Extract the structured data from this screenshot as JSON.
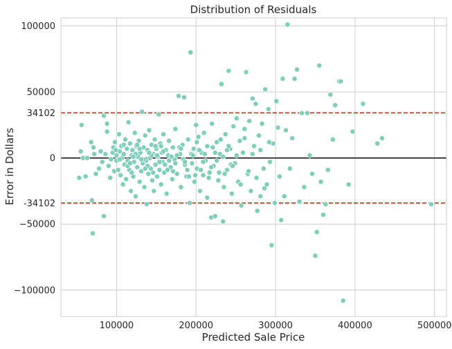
{
  "chart_data": {
    "type": "scatter",
    "title": "Distribution of Residuals",
    "xlabel": "Predicted Sale Price",
    "ylabel": "Error in Dollars",
    "xlim": [
      30000,
      515000
    ],
    "ylim": [
      -120000,
      106000
    ],
    "xticks": [
      100000,
      200000,
      300000,
      400000,
      500000
    ],
    "yticks": [
      100000,
      50000,
      0,
      -50000,
      -100000
    ],
    "ytick_labels": [
      "100000",
      "50000",
      "0",
      "−50000",
      "−100000"
    ],
    "grid": true,
    "point_color": "#7fcdbb",
    "zero_line": {
      "y": 0,
      "color": "#000000"
    },
    "threshold_lines": [
      {
        "y": 34102,
        "label": "34102",
        "color": "#ff0000",
        "style": "dashed"
      },
      {
        "y": -34102,
        "label": "-34102",
        "color": "#ff0000",
        "style": "dashed"
      }
    ],
    "points": [
      [
        53000,
        -15000
      ],
      [
        55000,
        5000
      ],
      [
        56000,
        25000
      ],
      [
        58000,
        0
      ],
      [
        61000,
        -14000
      ],
      [
        63000,
        0
      ],
      [
        68000,
        12000
      ],
      [
        69000,
        -32000
      ],
      [
        70000,
        -57000
      ],
      [
        71000,
        8000
      ],
      [
        72000,
        3000
      ],
      [
        74000,
        -12000
      ],
      [
        78000,
        -8000
      ],
      [
        80000,
        5000
      ],
      [
        82000,
        -3000
      ],
      [
        84000,
        -44000
      ],
      [
        84000,
        32000
      ],
      [
        86000,
        3000
      ],
      [
        88000,
        20000
      ],
      [
        88000,
        26000
      ],
      [
        90000,
        -6000
      ],
      [
        92000,
        -15000
      ],
      [
        93000,
        -1000
      ],
      [
        95000,
        4000
      ],
      [
        96000,
        8000
      ],
      [
        97000,
        -10000
      ],
      [
        98000,
        12000
      ],
      [
        100000,
        -2000
      ],
      [
        100000,
        2000
      ],
      [
        102000,
        -9000
      ],
      [
        103000,
        18000
      ],
      [
        104000,
        5000
      ],
      [
        105000,
        -13000
      ],
      [
        106000,
        9000
      ],
      [
        107000,
        0
      ],
      [
        108000,
        -20000
      ],
      [
        109000,
        3000
      ],
      [
        110000,
        -5000
      ],
      [
        111000,
        14000
      ],
      [
        112000,
        -16000
      ],
      [
        113000,
        7000
      ],
      [
        114000,
        -2000
      ],
      [
        115000,
        27000
      ],
      [
        116000,
        -9000
      ],
      [
        117000,
        11000
      ],
      [
        118000,
        -25000
      ],
      [
        119000,
        2000
      ],
      [
        120000,
        6000
      ],
      [
        121000,
        -14000
      ],
      [
        122000,
        -3000
      ],
      [
        123000,
        19000
      ],
      [
        124000,
        -29000
      ],
      [
        125000,
        9000
      ],
      [
        126000,
        -7000
      ],
      [
        127000,
        1000
      ],
      [
        128000,
        13000
      ],
      [
        129000,
        -18000
      ],
      [
        130000,
        4000
      ],
      [
        131000,
        -10000
      ],
      [
        132000,
        35000
      ],
      [
        133000,
        -4000
      ],
      [
        134000,
        8000
      ],
      [
        135000,
        -22000
      ],
      [
        136000,
        17000
      ],
      [
        137000,
        -2000
      ],
      [
        138000,
        -35000
      ],
      [
        139000,
        6000
      ],
      [
        140000,
        -12000
      ],
      [
        141000,
        21000
      ],
      [
        142000,
        0
      ],
      [
        143000,
        -8000
      ],
      [
        144000,
        10000
      ],
      [
        145000,
        -17000
      ],
      [
        146000,
        3000
      ],
      [
        147000,
        -25000
      ],
      [
        148000,
        14000
      ],
      [
        149000,
        -5000
      ],
      [
        150000,
        7000
      ],
      [
        151000,
        -14000
      ],
      [
        152000,
        1000
      ],
      [
        153000,
        33000
      ],
      [
        154000,
        -9000
      ],
      [
        155000,
        11000
      ],
      [
        156000,
        -20000
      ],
      [
        157000,
        4000
      ],
      [
        158000,
        -3000
      ],
      [
        159000,
        18000
      ],
      [
        160000,
        -11000
      ],
      [
        162000,
        6000
      ],
      [
        163000,
        -27000
      ],
      [
        165000,
        2000
      ],
      [
        166000,
        13000
      ],
      [
        168000,
        -7000
      ],
      [
        170000,
        -16000
      ],
      [
        171000,
        8000
      ],
      [
        173000,
        -1000
      ],
      [
        174000,
        22000
      ],
      [
        176000,
        -12000
      ],
      [
        178000,
        47000
      ],
      [
        180000,
        3000
      ],
      [
        181000,
        -22000
      ],
      [
        183000,
        10000
      ],
      [
        185000,
        46000
      ],
      [
        186000,
        -5000
      ],
      [
        188000,
        -14000
      ],
      [
        190000,
        14000
      ],
      [
        192000,
        -34000
      ],
      [
        193000,
        80000
      ],
      [
        195000,
        -4000
      ],
      [
        197000,
        7000
      ],
      [
        198000,
        -18000
      ],
      [
        200000,
        25000
      ],
      [
        201000,
        -8000
      ],
      [
        203000,
        16000
      ],
      [
        205000,
        -25000
      ],
      [
        207000,
        4000
      ],
      [
        209000,
        -13000
      ],
      [
        210000,
        19000
      ],
      [
        212000,
        -2000
      ],
      [
        214000,
        -30000
      ],
      [
        215000,
        9000
      ],
      [
        217000,
        -11000
      ],
      [
        219000,
        -45000
      ],
      [
        220000,
        26000
      ],
      [
        222000,
        -6000
      ],
      [
        224000,
        -44000
      ],
      [
        226000,
        12000
      ],
      [
        228000,
        -17000
      ],
      [
        230000,
        3000
      ],
      [
        232000,
        56000
      ],
      [
        234000,
        -48000
      ],
      [
        235000,
        -22000
      ],
      [
        237000,
        18000
      ],
      [
        239000,
        -9000
      ],
      [
        241000,
        66000
      ],
      [
        243000,
        7000
      ],
      [
        245000,
        -27000
      ],
      [
        247000,
        24000
      ],
      [
        249000,
        -4000
      ],
      [
        251000,
        30000
      ],
      [
        253000,
        -18000
      ],
      [
        255000,
        13000
      ],
      [
        257000,
        -36000
      ],
      [
        259000,
        4000
      ],
      [
        261000,
        22000
      ],
      [
        263000,
        65000
      ],
      [
        265000,
        -12000
      ],
      [
        267000,
        28000
      ],
      [
        269000,
        -25000
      ],
      [
        271000,
        45000
      ],
      [
        273000,
        9000
      ],
      [
        275000,
        41000
      ],
      [
        277000,
        -40000
      ],
      [
        279000,
        17000
      ],
      [
        281000,
        -29000
      ],
      [
        283000,
        26000
      ],
      [
        285000,
        -8000
      ],
      [
        287000,
        52000
      ],
      [
        289000,
        -20000
      ],
      [
        291000,
        37000
      ],
      [
        293000,
        -3000
      ],
      [
        295000,
        -66000
      ],
      [
        297000,
        11000
      ],
      [
        299000,
        -34000
      ],
      [
        301000,
        43000
      ],
      [
        303000,
        23000
      ],
      [
        305000,
        -14000
      ],
      [
        307000,
        -47000
      ],
      [
        309000,
        60000
      ],
      [
        311000,
        -29000
      ],
      [
        313000,
        21000
      ],
      [
        315000,
        101000
      ],
      [
        318000,
        -8000
      ],
      [
        321000,
        15000
      ],
      [
        324000,
        60000
      ],
      [
        327000,
        67000
      ],
      [
        330000,
        -33000
      ],
      [
        333000,
        34000
      ],
      [
        336000,
        -22000
      ],
      [
        340000,
        34000
      ],
      [
        343000,
        2000
      ],
      [
        346000,
        -12000
      ],
      [
        350000,
        -74000
      ],
      [
        352000,
        -56000
      ],
      [
        355000,
        70000
      ],
      [
        357000,
        -18000
      ],
      [
        360000,
        -43000
      ],
      [
        363000,
        -35000
      ],
      [
        366000,
        -9000
      ],
      [
        369000,
        48000
      ],
      [
        372000,
        14000
      ],
      [
        375000,
        40000
      ],
      [
        380000,
        58000
      ],
      [
        382000,
        58000
      ],
      [
        385000,
        -108000
      ],
      [
        392000,
        -20000
      ],
      [
        397000,
        20000
      ],
      [
        410000,
        41000
      ],
      [
        428000,
        11000
      ],
      [
        434000,
        15000
      ],
      [
        496000,
        -35000
      ],
      [
        99000,
        6000
      ],
      [
        104000,
        -1000
      ],
      [
        109000,
        10000
      ],
      [
        114000,
        -6000
      ],
      [
        119000,
        -11000
      ],
      [
        124000,
        3000
      ],
      [
        129000,
        7000
      ],
      [
        134000,
        -1000
      ],
      [
        139000,
        -6000
      ],
      [
        144000,
        2000
      ],
      [
        149000,
        9000
      ],
      [
        154000,
        -3000
      ],
      [
        159000,
        5000
      ],
      [
        164000,
        -9000
      ],
      [
        169000,
        1000
      ],
      [
        174000,
        -4000
      ],
      [
        179000,
        8000
      ],
      [
        184000,
        -1000
      ],
      [
        189000,
        -9000
      ],
      [
        194000,
        3000
      ],
      [
        199000,
        -13000
      ],
      [
        204000,
        6000
      ],
      [
        209000,
        -3000
      ],
      [
        214000,
        9000
      ],
      [
        219000,
        -7000
      ],
      [
        224000,
        4000
      ],
      [
        229000,
        -11000
      ],
      [
        234000,
        1000
      ],
      [
        239000,
        6000
      ],
      [
        244000,
        -5000
      ],
      [
        117000,
        -4000
      ],
      [
        121000,
        1000
      ],
      [
        126000,
        10000
      ],
      [
        131000,
        -1000
      ],
      [
        136000,
        -8000
      ],
      [
        141000,
        4000
      ],
      [
        146000,
        -11000
      ],
      [
        151000,
        2000
      ],
      [
        156000,
        9000
      ],
      [
        161000,
        -5000
      ],
      [
        166000,
        -2000
      ],
      [
        171000,
        -10000
      ],
      [
        176000,
        2000
      ],
      [
        181000,
        7000
      ],
      [
        186000,
        -3000
      ],
      [
        191000,
        -14000
      ],
      [
        196000,
        2000
      ],
      [
        201000,
        12000
      ],
      [
        206000,
        -9000
      ],
      [
        211000,
        3000
      ],
      [
        216000,
        -15000
      ],
      [
        221000,
        8000
      ],
      [
        226000,
        -2000
      ],
      [
        231000,
        14000
      ],
      [
        236000,
        -12000
      ],
      [
        241000,
        9000
      ],
      [
        246000,
        -6000
      ],
      [
        251000,
        2000
      ],
      [
        256000,
        -20000
      ],
      [
        261000,
        15000
      ],
      [
        266000,
        -10000
      ],
      [
        271000,
        3000
      ],
      [
        276000,
        -15000
      ],
      [
        281000,
        6000
      ],
      [
        286000,
        -23000
      ],
      [
        292000,
        12000
      ]
    ]
  }
}
